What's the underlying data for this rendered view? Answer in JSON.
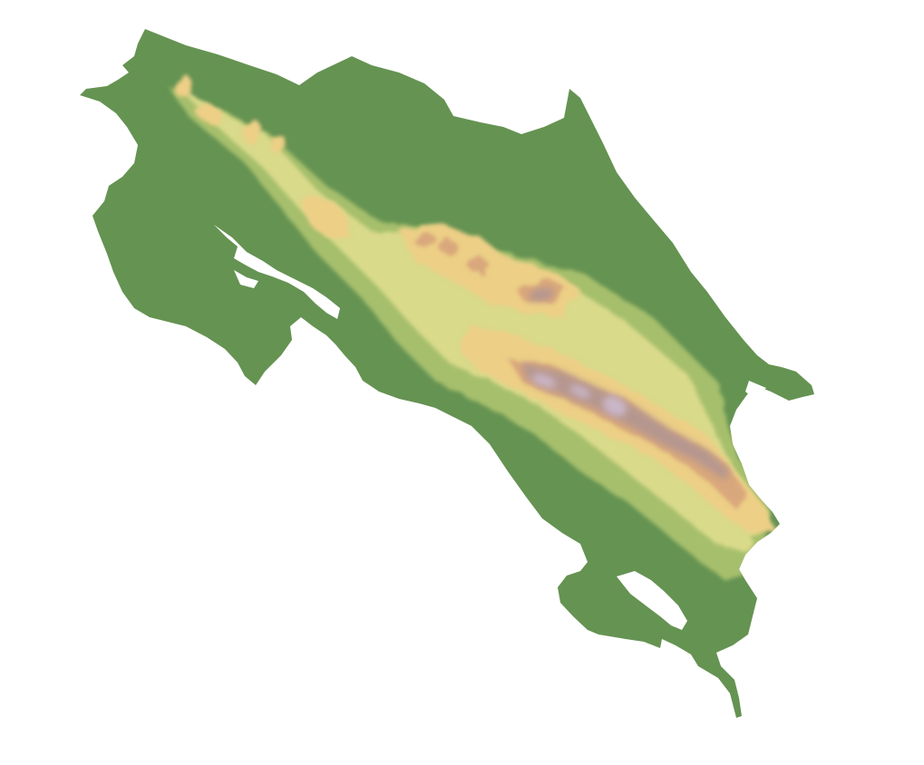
{
  "map": {
    "kind": "elevation relief",
    "background_color": "#ffffff",
    "colors": {
      "lowland": "#659352",
      "foothill": "#a6bf6c",
      "midland": "#d9da8a",
      "upland": "#edcf86",
      "highland": "#d9a77c",
      "ridge": "#b5968f",
      "peak": "#cab6c8"
    },
    "labels": []
  }
}
